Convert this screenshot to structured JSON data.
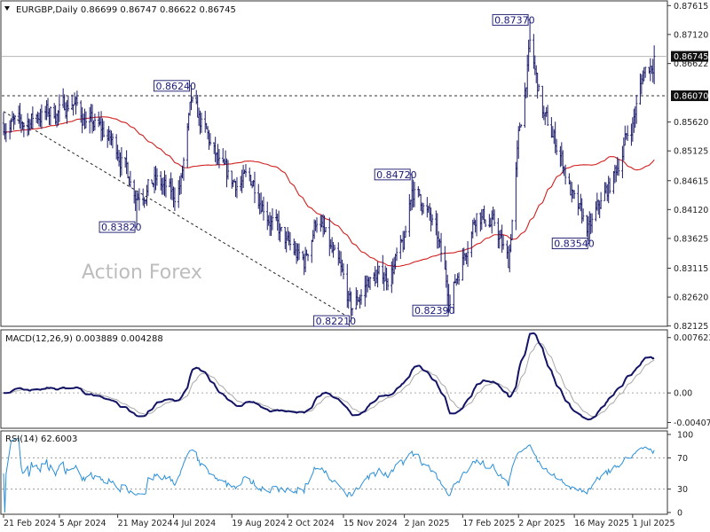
{
  "chart_data": {
    "type": "ohlc",
    "symbol_line": "EURGBP,Daily  0.86699 0.86747 0.86622 0.86745",
    "watermark": "Action Forex",
    "price_panel": {
      "ylim": [
        0.8215,
        0.8765
      ],
      "y_ticks": [
        "0.87615",
        "0.87120",
        "0.86622",
        "0.85620",
        "0.85125",
        "0.84615",
        "0.84120",
        "0.83625",
        "0.83115",
        "0.82620",
        "0.82125"
      ],
      "last_price": "0.86745",
      "reference_level": "0.86070",
      "annotations": [
        {
          "label": "0.82210",
          "date": "2024-11-21",
          "value": 0.8221
        },
        {
          "label": "0.82390",
          "date": "2025-02-07",
          "value": 0.8239
        },
        {
          "label": "0.83540",
          "date": "2025-05-28",
          "value": 0.8354
        },
        {
          "label": "0.83820",
          "date": "2024-06-05",
          "value": 0.8382
        },
        {
          "label": "0.84720",
          "date": "2025-01-08",
          "value": 0.8472
        },
        {
          "label": "0.86240",
          "date": "2024-07-18",
          "value": 0.8624
        },
        {
          "label": "0.87370",
          "date": "2025-04-11",
          "value": 0.8737
        }
      ],
      "moving_average_color": "#d21f1f",
      "bar_color": "#1c1c6a",
      "anchor_closes": [
        [
          "2024-02-21",
          0.856
        ],
        [
          "2024-03-05",
          0.8555
        ],
        [
          "2024-03-20",
          0.8575
        ],
        [
          "2024-04-05",
          0.858
        ],
        [
          "2024-04-15",
          0.86
        ],
        [
          "2024-04-25",
          0.8565
        ],
        [
          "2024-05-10",
          0.8545
        ],
        [
          "2024-05-21",
          0.8515
        ],
        [
          "2024-06-05",
          0.844
        ],
        [
          "2024-06-20",
          0.846
        ],
        [
          "2024-07-04",
          0.8435
        ],
        [
          "2024-07-10",
          0.846
        ],
        [
          "2024-07-18",
          0.859
        ],
        [
          "2024-07-30",
          0.854
        ],
        [
          "2024-08-10",
          0.848
        ],
        [
          "2024-08-19",
          0.846
        ],
        [
          "2024-09-05",
          0.846
        ],
        [
          "2024-09-20",
          0.839
        ],
        [
          "2024-10-02",
          0.835
        ],
        [
          "2024-10-15",
          0.832
        ],
        [
          "2024-10-25",
          0.84
        ],
        [
          "2024-11-05",
          0.834
        ],
        [
          "2024-11-15",
          0.829
        ],
        [
          "2024-11-21",
          0.824
        ],
        [
          "2024-12-05",
          0.829
        ],
        [
          "2024-12-20",
          0.83
        ],
        [
          "2025-01-02",
          0.835
        ],
        [
          "2025-01-08",
          0.845
        ],
        [
          "2025-01-18",
          0.842
        ],
        [
          "2025-01-28",
          0.836
        ],
        [
          "2025-02-07",
          0.826
        ],
        [
          "2025-02-17",
          0.833
        ],
        [
          "2025-02-28",
          0.841
        ],
        [
          "2025-03-15",
          0.838
        ],
        [
          "2025-03-25",
          0.832
        ],
        [
          "2025-04-02",
          0.853
        ],
        [
          "2025-04-11",
          0.869
        ],
        [
          "2025-04-22",
          0.857
        ],
        [
          "2025-05-05",
          0.851
        ],
        [
          "2025-05-16",
          0.842
        ],
        [
          "2025-05-28",
          0.8375
        ],
        [
          "2025-06-05",
          0.842
        ],
        [
          "2025-06-15",
          0.846
        ],
        [
          "2025-06-25",
          0.853
        ],
        [
          "2025-07-01",
          0.856
        ],
        [
          "2025-07-10",
          0.865
        ],
        [
          "2025-07-20",
          0.8672
        ]
      ]
    },
    "macd_panel": {
      "label": "MACD(12,26,9) 0.003889 0.004288",
      "ylim": [
        -0.0045,
        0.0082
      ],
      "y_ticks": [
        "0.007623",
        "0.00",
        "-0.004073"
      ],
      "macd_color": "#141466",
      "signal_color": "#a8a8a8"
    },
    "rsi_panel": {
      "label": "RSI(14) 62.6003",
      "ylim": [
        0,
        100
      ],
      "y_ticks": [
        "100",
        "70",
        "30",
        "0"
      ],
      "levels": [
        70,
        30
      ],
      "line_color": "#2a8fd8"
    },
    "x_tick_labels": [
      "21 Feb 2024",
      "5 Apr 2024",
      "21 May 2024",
      "4 Jul 2024",
      "19 Aug 2024",
      "2 Oct 2024",
      "15 Nov 2024",
      "2 Jan 2025",
      "17 Feb 2025",
      "2 Apr 2025",
      "16 May 2025",
      "1 Jul 2025"
    ]
  }
}
